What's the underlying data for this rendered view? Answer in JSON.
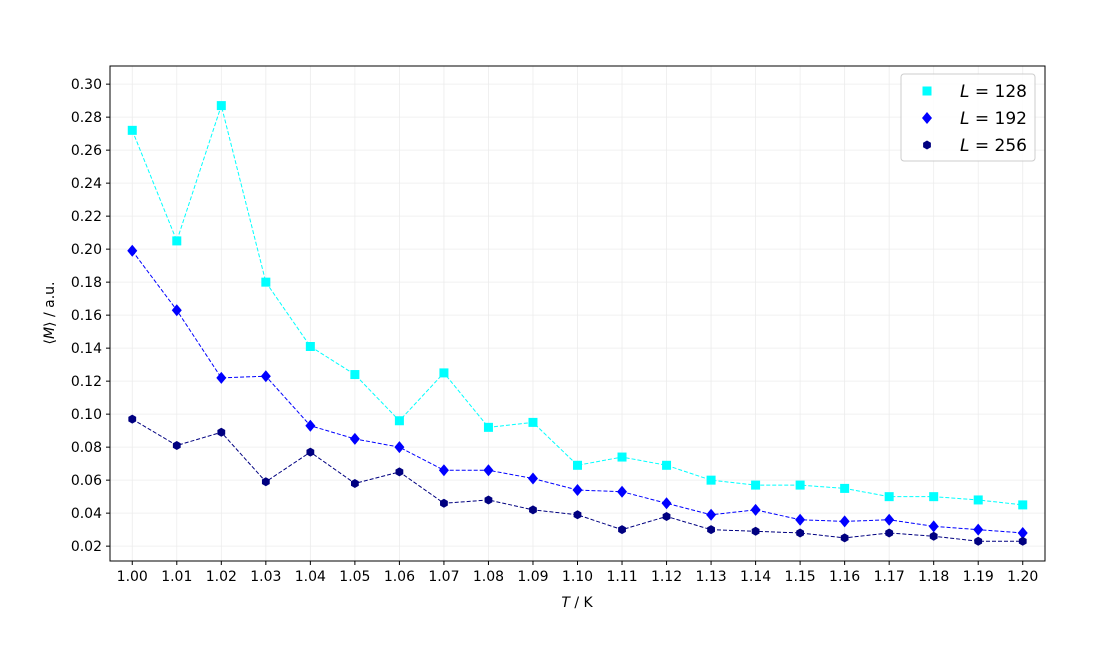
{
  "chart_data": {
    "type": "line",
    "xlabel_var": "T",
    "xlabel_unit": " / K",
    "ylabel_pre": "⟨",
    "ylabel_var": "M",
    "ylabel_post": "⟩ / a.u.",
    "xlim": [
      0.995,
      1.205
    ],
    "ylim": [
      0.011,
      0.311
    ],
    "x_ticks": [
      1.0,
      1.01,
      1.02,
      1.03,
      1.04,
      1.05,
      1.06,
      1.07,
      1.08,
      1.09,
      1.1,
      1.11,
      1.12,
      1.13,
      1.14,
      1.15,
      1.16,
      1.17,
      1.18,
      1.19,
      1.2
    ],
    "x_tick_labels": [
      "1.00",
      "1.01",
      "1.02",
      "1.03",
      "1.04",
      "1.05",
      "1.06",
      "1.07",
      "1.08",
      "1.09",
      "1.10",
      "1.11",
      "1.12",
      "1.13",
      "1.14",
      "1.15",
      "1.16",
      "1.17",
      "1.18",
      "1.19",
      "1.20"
    ],
    "y_ticks": [
      0.02,
      0.04,
      0.06,
      0.08,
      0.1,
      0.12,
      0.14,
      0.16,
      0.18,
      0.2,
      0.22,
      0.24,
      0.26,
      0.28,
      0.3
    ],
    "y_tick_labels": [
      "0.02",
      "0.04",
      "0.06",
      "0.08",
      "0.10",
      "0.12",
      "0.14",
      "0.16",
      "0.18",
      "0.20",
      "0.22",
      "0.24",
      "0.26",
      "0.28",
      "0.30"
    ],
    "grid": true,
    "legend_position": "top-right",
    "x": [
      1.0,
      1.01,
      1.02,
      1.03,
      1.04,
      1.05,
      1.06,
      1.07,
      1.08,
      1.09,
      1.1,
      1.11,
      1.12,
      1.13,
      1.14,
      1.15,
      1.16,
      1.17,
      1.18,
      1.19,
      1.2
    ],
    "series": [
      {
        "legend_var": "L",
        "legend_value": "128",
        "color": "#00ffff",
        "marker": "square",
        "values": [
          0.272,
          0.205,
          0.287,
          0.18,
          0.141,
          0.124,
          0.096,
          0.125,
          0.092,
          0.095,
          0.069,
          0.074,
          0.069,
          0.06,
          0.057,
          0.057,
          0.055,
          0.05,
          0.05,
          0.048,
          0.045
        ]
      },
      {
        "legend_var": "L",
        "legend_value": "192",
        "color": "#0000ff",
        "marker": "diamond",
        "values": [
          0.199,
          0.163,
          0.122,
          0.123,
          0.093,
          0.085,
          0.08,
          0.066,
          0.066,
          0.061,
          0.054,
          0.053,
          0.046,
          0.039,
          0.042,
          0.036,
          0.035,
          0.036,
          0.032,
          0.03,
          0.028
        ]
      },
      {
        "legend_var": "L",
        "legend_value": "256",
        "color": "#000080",
        "marker": "hexagon",
        "values": [
          0.097,
          0.081,
          0.089,
          0.059,
          0.077,
          0.058,
          0.065,
          0.046,
          0.048,
          0.042,
          0.039,
          0.03,
          0.038,
          0.03,
          0.029,
          0.028,
          0.025,
          0.028,
          0.026,
          0.023,
          0.023
        ]
      }
    ]
  }
}
